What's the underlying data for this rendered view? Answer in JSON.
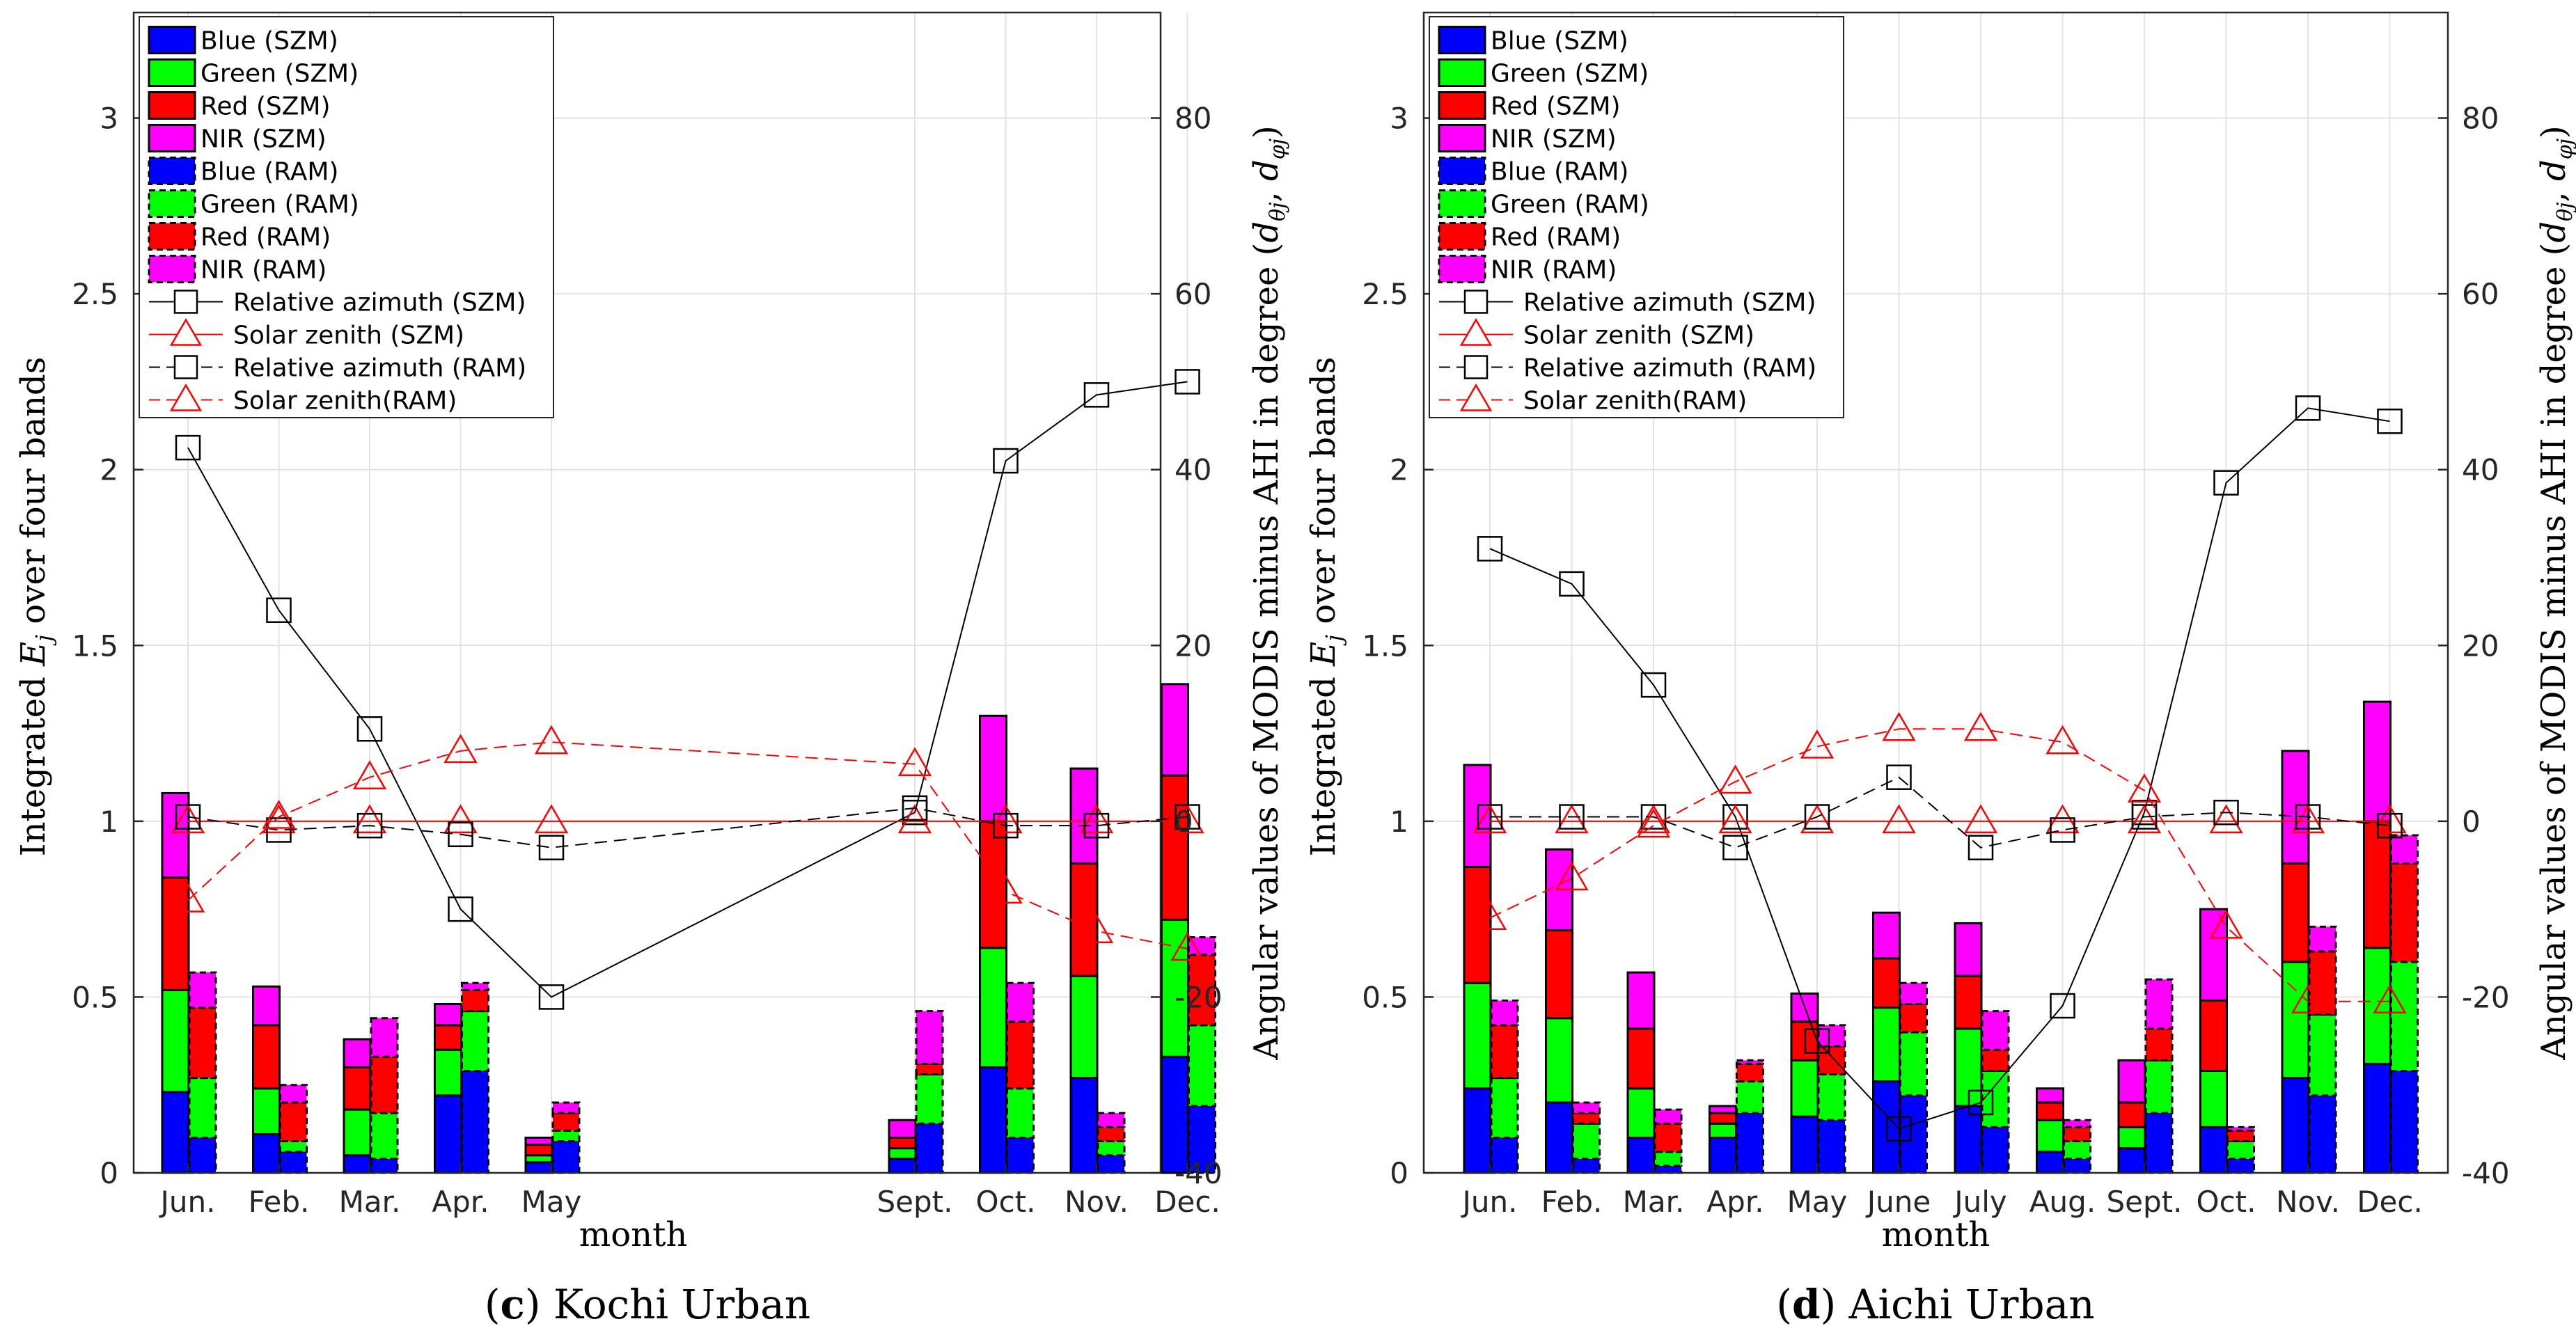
{
  "colors": {
    "blue": "#0000ff",
    "green": "#00ff00",
    "red": "#ff0000",
    "nir": "#ff00ff",
    "sza": "#ff0000",
    "raa": "#000000"
  },
  "shared": {
    "xlabel": "month",
    "ylabel_left_a": "Integrated ",
    "ylabel_left_sym": "E",
    "ylabel_left_sub": "j",
    "ylabel_left_b": " over four bands",
    "ylabel_right": "Angular values of MODIS minus AHI in degree (",
    "ylabel_right_sym": "d",
    "ylabel_right_sub1": "θj",
    "ylabel_right_comma": ", ",
    "ylabel_right_sub2": "φj",
    "ylabel_right_end": ")",
    "legend": [
      "Blue (SZM)",
      "Green (SZM)",
      "Red (SZM)",
      "NIR (SZM)",
      "Blue (RAM)",
      "Green (RAM)",
      "Red (RAM)",
      "NIR (RAM)",
      "Relative azimuth (SZM)",
      "Solar zenith (SZM)",
      "Relative azimuth (RAM)",
      "Solar zenith(RAM)"
    ]
  },
  "chart_data": [
    {
      "type": "bar",
      "title": "Kochi Urban",
      "caption_label": "(c)",
      "xlabel": "month",
      "ylim": [
        0,
        3.3
      ],
      "y_ticks": [
        "0",
        "0.5",
        "1",
        "1.5",
        "2",
        "2.5",
        "3"
      ],
      "y2lim": [
        -40,
        92
      ],
      "y2_ticks": [
        "-40",
        "-20",
        "0",
        "20",
        "40",
        "60",
        "80"
      ],
      "categories": [
        "Jun.",
        "Feb.",
        "Mar.",
        "Apr.",
        "May",
        "Sept.",
        "Oct.",
        "Nov.",
        "Dec."
      ],
      "cat_pos": [
        1,
        2,
        3,
        4,
        5,
        9,
        10,
        11,
        12
      ],
      "szm": {
        "blue": [
          0.23,
          0.11,
          0.05,
          0.22,
          0.03,
          0.04,
          0.3,
          0.27,
          0.33
        ],
        "green": [
          0.29,
          0.13,
          0.13,
          0.13,
          0.02,
          0.03,
          0.34,
          0.29,
          0.39
        ],
        "red": [
          0.32,
          0.18,
          0.12,
          0.07,
          0.03,
          0.03,
          0.36,
          0.32,
          0.41
        ],
        "nir": [
          0.24,
          0.11,
          0.08,
          0.06,
          0.02,
          0.05,
          0.3,
          0.27,
          0.26
        ]
      },
      "ram": {
        "blue": [
          0.1,
          0.06,
          0.04,
          0.29,
          0.09,
          0.14,
          0.1,
          0.05,
          0.19
        ],
        "green": [
          0.17,
          0.03,
          0.13,
          0.17,
          0.03,
          0.14,
          0.14,
          0.04,
          0.23
        ],
        "red": [
          0.2,
          0.11,
          0.16,
          0.06,
          0.05,
          0.03,
          0.19,
          0.04,
          0.2
        ],
        "nir": [
          0.1,
          0.05,
          0.11,
          0.02,
          0.03,
          0.15,
          0.11,
          0.04,
          0.05
        ]
      },
      "raz_szm": [
        42.5,
        24.0,
        10.5,
        -10.0,
        -20.0,
        1.0,
        41.0,
        48.5,
        50.0
      ],
      "sza_szm": [
        0.0,
        0.0,
        0.0,
        0.0,
        0.0,
        0.0,
        0.0,
        0.0,
        0.0
      ],
      "raz_ram": [
        0.5,
        -1.0,
        -0.5,
        -1.5,
        -3.0,
        1.5,
        -0.5,
        -0.5,
        0.5
      ],
      "sza_ram": [
        -9.0,
        0.5,
        5.0,
        8.0,
        9.0,
        6.5,
        -8.0,
        -12.5,
        -14.5
      ]
    },
    {
      "type": "bar",
      "title": "Aichi Urban",
      "caption_label": "(d)",
      "xlabel": "month",
      "ylim": [
        0,
        3.3
      ],
      "y_ticks": [
        "0",
        "0.5",
        "1",
        "1.5",
        "2",
        "2.5",
        "3"
      ],
      "y2lim": [
        -40,
        92
      ],
      "y2_ticks": [
        "-40",
        "-20",
        "0",
        "20",
        "40",
        "60",
        "80"
      ],
      "categories": [
        "Jun.",
        "Feb.",
        "Mar.",
        "Apr.",
        "May",
        "June",
        "July",
        "Aug.",
        "Sept.",
        "Oct.",
        "Nov.",
        "Dec."
      ],
      "cat_pos": [
        1,
        2,
        3,
        4,
        5,
        6,
        7,
        8,
        9,
        10,
        11,
        12
      ],
      "szm": {
        "blue": [
          0.24,
          0.2,
          0.1,
          0.1,
          0.16,
          0.26,
          0.19,
          0.06,
          0.07,
          0.13,
          0.27,
          0.31
        ],
        "green": [
          0.3,
          0.24,
          0.14,
          0.04,
          0.16,
          0.21,
          0.22,
          0.09,
          0.06,
          0.16,
          0.33,
          0.33
        ],
        "red": [
          0.33,
          0.25,
          0.17,
          0.03,
          0.11,
          0.14,
          0.15,
          0.05,
          0.07,
          0.2,
          0.28,
          0.36
        ],
        "nir": [
          0.29,
          0.23,
          0.16,
          0.02,
          0.08,
          0.13,
          0.15,
          0.04,
          0.12,
          0.26,
          0.32,
          0.34
        ]
      },
      "ram": {
        "blue": [
          0.1,
          0.04,
          0.02,
          0.17,
          0.15,
          0.22,
          0.13,
          0.04,
          0.17,
          0.04,
          0.22,
          0.29
        ],
        "green": [
          0.17,
          0.1,
          0.04,
          0.09,
          0.13,
          0.18,
          0.16,
          0.05,
          0.15,
          0.05,
          0.23,
          0.31
        ],
        "red": [
          0.15,
          0.03,
          0.08,
          0.05,
          0.08,
          0.08,
          0.06,
          0.04,
          0.09,
          0.03,
          0.18,
          0.28
        ],
        "nir": [
          0.07,
          0.03,
          0.04,
          0.01,
          0.06,
          0.06,
          0.11,
          0.02,
          0.14,
          0.01,
          0.07,
          0.08
        ]
      },
      "raz_szm": [
        31.0,
        27.0,
        15.5,
        0.5,
        -25.0,
        -35.0,
        -32.0,
        -21.0,
        1.0,
        38.5,
        47.0,
        45.5
      ],
      "sza_szm": [
        0.0,
        0.0,
        0.0,
        0.0,
        0.0,
        0.0,
        0.0,
        0.0,
        0.0,
        0.0,
        0.0,
        0.0
      ],
      "raz_ram": [
        0.5,
        0.5,
        0.5,
        -3.0,
        0.5,
        5.0,
        -3.0,
        -1.0,
        0.5,
        1.0,
        0.5,
        -0.5
      ],
      "sza_ram": [
        -11.0,
        -6.5,
        -0.5,
        4.5,
        8.5,
        10.5,
        10.5,
        9.0,
        3.5,
        -12.0,
        -20.5,
        -20.5
      ]
    }
  ]
}
